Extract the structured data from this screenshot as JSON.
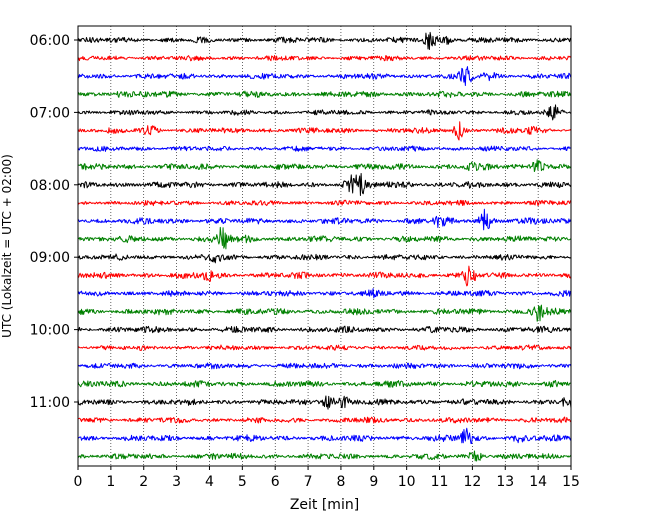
{
  "chart_data": {
    "type": "line",
    "xlabel": "Zeit  [min]",
    "ylabel": "UTC (Lokalzeit = UTC + 02:00)",
    "xlim": [
      0,
      15
    ],
    "x_ticks": [
      "0",
      "1",
      "2",
      "3",
      "4",
      "5",
      "6",
      "7",
      "8",
      "9",
      "10",
      "11",
      "12",
      "13",
      "14",
      "15"
    ],
    "y_ticks": [
      "06:00",
      "07:00",
      "08:00",
      "09:00",
      "10:00",
      "11:00"
    ],
    "grid": "vertical dotted lines at each minute",
    "trace_interval_minutes": 15,
    "start_time": "06:00",
    "series": [
      {
        "start": "06:00",
        "color": "#000000",
        "amplitude": 2.0,
        "events": [
          [
            10.7,
            5
          ],
          [
            11.2,
            3
          ]
        ]
      },
      {
        "start": "06:15",
        "color": "#ff0000",
        "amplitude": 1.8,
        "events": []
      },
      {
        "start": "06:30",
        "color": "#0000ff",
        "amplitude": 2.0,
        "events": [
          [
            11.8,
            5
          ],
          [
            12.5,
            3
          ]
        ]
      },
      {
        "start": "06:45",
        "color": "#008000",
        "amplitude": 2.2,
        "events": [
          [
            1.3,
            2
          ]
        ]
      },
      {
        "start": "07:00",
        "color": "#000000",
        "amplitude": 1.8,
        "events": [
          [
            14.5,
            5
          ]
        ]
      },
      {
        "start": "07:15",
        "color": "#ff0000",
        "amplitude": 2.0,
        "events": [
          [
            2.2,
            3
          ],
          [
            11.6,
            5
          ],
          [
            13.8,
            2
          ]
        ]
      },
      {
        "start": "07:30",
        "color": "#0000ff",
        "amplitude": 1.8,
        "events": []
      },
      {
        "start": "07:45",
        "color": "#008000",
        "amplitude": 2.2,
        "events": [
          [
            14.0,
            4
          ],
          [
            12.0,
            2
          ]
        ]
      },
      {
        "start": "08:00",
        "color": "#000000",
        "amplitude": 2.2,
        "events": [
          [
            8.3,
            4
          ],
          [
            8.6,
            5
          ],
          [
            10.0,
            2
          ]
        ]
      },
      {
        "start": "08:15",
        "color": "#ff0000",
        "amplitude": 1.8,
        "events": []
      },
      {
        "start": "08:30",
        "color": "#0000ff",
        "amplitude": 2.2,
        "events": [
          [
            12.4,
            6
          ],
          [
            11.0,
            3
          ]
        ]
      },
      {
        "start": "08:45",
        "color": "#008000",
        "amplitude": 2.2,
        "events": [
          [
            4.4,
            6
          ],
          [
            5.1,
            2
          ]
        ]
      },
      {
        "start": "09:00",
        "color": "#000000",
        "amplitude": 2.0,
        "events": [
          [
            4.2,
            3
          ]
        ]
      },
      {
        "start": "09:15",
        "color": "#ff0000",
        "amplitude": 2.2,
        "events": [
          [
            4.0,
            3
          ],
          [
            11.9,
            6
          ]
        ]
      },
      {
        "start": "09:30",
        "color": "#0000ff",
        "amplitude": 2.0,
        "events": [
          [
            9.0,
            2
          ]
        ]
      },
      {
        "start": "09:45",
        "color": "#008000",
        "amplitude": 2.2,
        "events": [
          [
            14.0,
            5
          ]
        ]
      },
      {
        "start": "10:00",
        "color": "#000000",
        "amplitude": 2.2,
        "events": []
      },
      {
        "start": "10:15",
        "color": "#ff0000",
        "amplitude": 1.8,
        "events": []
      },
      {
        "start": "10:30",
        "color": "#0000ff",
        "amplitude": 2.0,
        "events": []
      },
      {
        "start": "10:45",
        "color": "#008000",
        "amplitude": 2.2,
        "events": [
          [
            14.5,
            2
          ]
        ]
      },
      {
        "start": "11:00",
        "color": "#000000",
        "amplitude": 2.2,
        "events": [
          [
            7.6,
            4
          ],
          [
            8.1,
            3
          ],
          [
            14.9,
            3
          ]
        ]
      },
      {
        "start": "11:15",
        "color": "#ff0000",
        "amplitude": 2.0,
        "events": []
      },
      {
        "start": "11:30",
        "color": "#0000ff",
        "amplitude": 2.2,
        "events": [
          [
            11.8,
            5
          ],
          [
            13.4,
            2
          ]
        ]
      },
      {
        "start": "11:45",
        "color": "#008000",
        "amplitude": 2.0,
        "events": [
          [
            12.1,
            4
          ],
          [
            4.1,
            2
          ]
        ]
      }
    ]
  }
}
